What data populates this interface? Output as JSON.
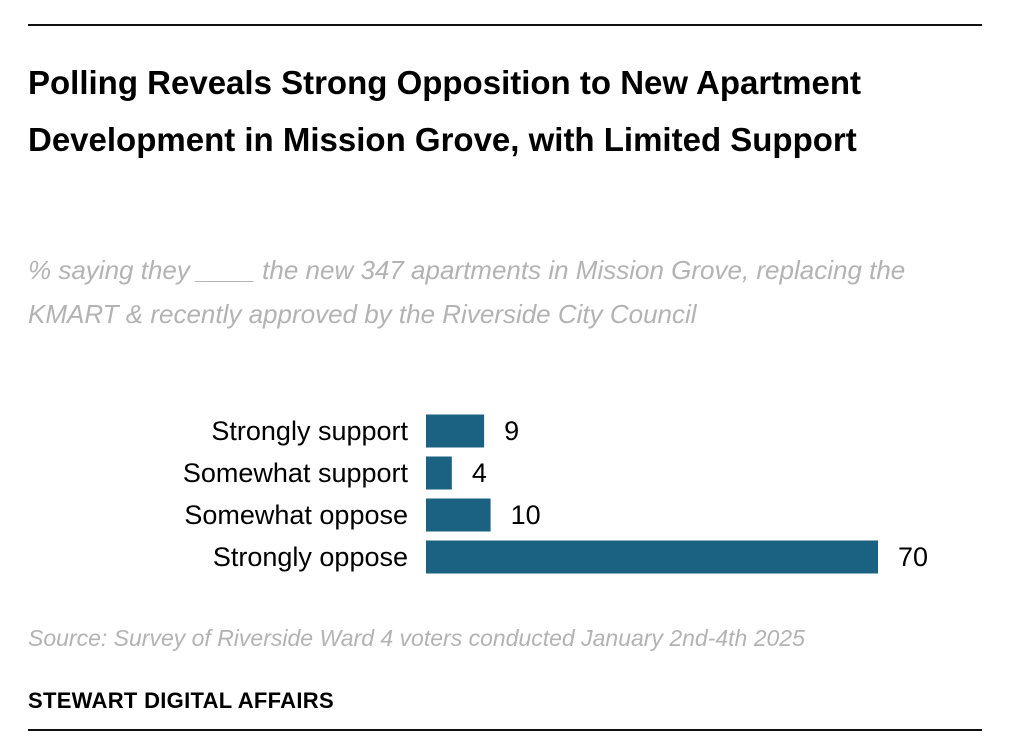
{
  "chart_data": {
    "type": "bar",
    "orientation": "horizontal",
    "title": "Polling Reveals Strong Opposition to New Apartment Development in Mission Grove, with Limited Support",
    "subtitle": "% saying they ____ the new 347 apartments in Mission Grove, replacing the KMART & recently approved by the Riverside City Council",
    "categories": [
      "Strongly support",
      "Somewhat support",
      "Somewhat oppose",
      "Strongly oppose"
    ],
    "values": [
      9,
      4,
      10,
      70
    ],
    "xlim": [
      0,
      70
    ],
    "grid": false,
    "legend": "none",
    "bar_color": "#1b6282"
  },
  "footer": {
    "source": "Source: Survey of Riverside Ward 4 voters conducted January 2nd-4th 2025",
    "brand": "STEWART DIGITAL AFFAIRS"
  }
}
